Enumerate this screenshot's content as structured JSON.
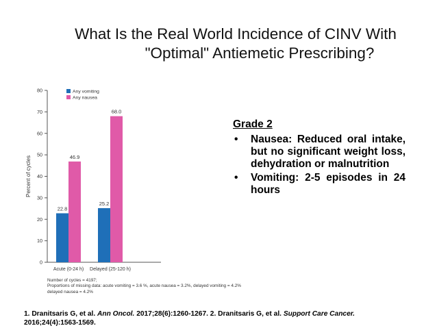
{
  "title": {
    "line1": "What Is the Real World Incidence of CINV With",
    "line2": "\"Optimal\" Antiemetic Prescribing?"
  },
  "chart_data": {
    "type": "bar",
    "categories": [
      "Acute (0-24 h)",
      "Delayed (25-120 h)"
    ],
    "series": [
      {
        "name": "Any vomiting",
        "values": [
          22.8,
          25.2
        ],
        "labels": [
          "22.8",
          "25.2"
        ],
        "color": "#1f6fb8"
      },
      {
        "name": "Any nausea",
        "values": [
          46.9,
          68.0
        ],
        "labels": [
          "46.9",
          "68.0"
        ],
        "color": "#e05aa8"
      }
    ],
    "ylabel": "Percent of cycles",
    "ylim": [
      0,
      80
    ],
    "yticks": [
      "0",
      "10",
      "20",
      "30",
      "40",
      "50",
      "60",
      "70",
      "80"
    ],
    "legend": "top-left",
    "notes": [
      "Number of cycles = 4197;",
      "Proportions of missing data: acute vomiting = 3.6 %, acute nausea = 3.2%, delayed vomiting = 4.2%",
      "delayed nausea = 4.2%"
    ]
  },
  "grade": {
    "title": "Grade 2",
    "bullets": [
      "Nausea: Reduced oral intake, but no significant weight loss, dehydration or malnutrition",
      "Vomiting: 2-5 episodes in 24 hours"
    ],
    "bullet_symbol": "•"
  },
  "references": {
    "r1_pre": "1. Dranitsaris G, et al. ",
    "r1_journal": "Ann Oncol.",
    "r1_post": " 2017;28(6):1260-1267. 2. Dranitsaris G, et al. ",
    "r2_journal": "Support Care Cancer.",
    "r2_post": " 2016;24(4):1563-1569."
  }
}
